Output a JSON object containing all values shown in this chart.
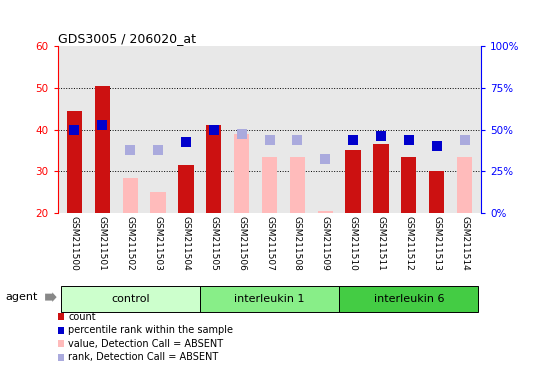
{
  "title": "GDS3005 / 206020_at",
  "samples": [
    "GSM211500",
    "GSM211501",
    "GSM211502",
    "GSM211503",
    "GSM211504",
    "GSM211505",
    "GSM211506",
    "GSM211507",
    "GSM211508",
    "GSM211509",
    "GSM211510",
    "GSM211511",
    "GSM211512",
    "GSM211513",
    "GSM211514"
  ],
  "groups": [
    {
      "label": "control",
      "start": 0,
      "end": 4,
      "color_light": "#d8f5d8",
      "color_dark": "#aaeaaa"
    },
    {
      "label": "interleukin 1",
      "start": 5,
      "end": 9,
      "color_light": "#88dd88",
      "color_dark": "#55cc55"
    },
    {
      "label": "interleukin 6",
      "start": 10,
      "end": 14,
      "color_light": "#44cc44",
      "color_dark": "#22aa22"
    }
  ],
  "bar_values": [
    44.5,
    50.5,
    28.5,
    25.0,
    31.5,
    41.0,
    39.0,
    33.5,
    33.5,
    20.5,
    35.0,
    36.5,
    33.5,
    30.0,
    33.5
  ],
  "bar_present": [
    true,
    true,
    false,
    false,
    true,
    true,
    false,
    false,
    false,
    false,
    true,
    true,
    true,
    true,
    false
  ],
  "rank_values": [
    40.0,
    41.0,
    35.0,
    35.0,
    37.0,
    40.0,
    39.0,
    37.5,
    37.5,
    33.0,
    37.5,
    38.5,
    37.5,
    36.0,
    37.5
  ],
  "rank_present": [
    true,
    true,
    false,
    false,
    true,
    true,
    false,
    false,
    false,
    false,
    true,
    true,
    true,
    true,
    false
  ],
  "ylim_left": [
    20,
    60
  ],
  "ylim_right": [
    0,
    100
  ],
  "yticks_left": [
    20,
    30,
    40,
    50,
    60
  ],
  "yticks_right": [
    0,
    25,
    50,
    75,
    100
  ],
  "ytick_labels_right": [
    "0%",
    "25%",
    "50%",
    "75%",
    "100%"
  ],
  "grid_vals": [
    30,
    40,
    50
  ],
  "bar_color_present": "#cc1111",
  "bar_color_absent": "#ffbbbb",
  "rank_color_present": "#0000cc",
  "rank_color_absent": "#aaaadd",
  "rank_sq_size": 45,
  "bar_width": 0.55,
  "plot_bg": "#e8e8e8",
  "label_bg": "#cccccc",
  "legend_items": [
    {
      "label": "count",
      "color": "#cc1111"
    },
    {
      "label": "percentile rank within the sample",
      "color": "#0000cc"
    },
    {
      "label": "value, Detection Call = ABSENT",
      "color": "#ffbbbb"
    },
    {
      "label": "rank, Detection Call = ABSENT",
      "color": "#aaaadd"
    }
  ]
}
